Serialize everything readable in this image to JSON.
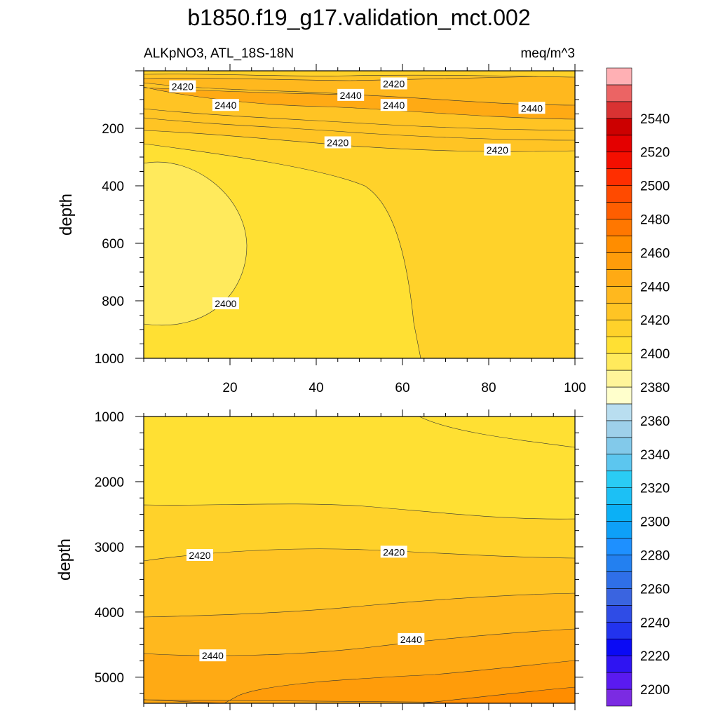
{
  "title": "b1850.f19_g17.validation_mct.002",
  "subtitle_left": "ALKpNO3, ATL_18S-18N",
  "subtitle_right": "meq/m^3",
  "colorbar": {
    "levels": [
      2190,
      2200,
      2210,
      2220,
      2230,
      2240,
      2250,
      2260,
      2270,
      2280,
      2290,
      2300,
      2310,
      2320,
      2330,
      2340,
      2350,
      2360,
      2370,
      2380,
      2390,
      2400,
      2410,
      2420,
      2430,
      2440,
      2450,
      2460,
      2470,
      2480,
      2490,
      2500,
      2510,
      2520,
      2530,
      2540,
      2550,
      2560
    ],
    "colors": [
      "#7B2BE2",
      "#5A1AF0",
      "#2F14F2",
      "#0A0AF5",
      "#2233EE",
      "#2F4CE6",
      "#3A64E0",
      "#2F6FE8",
      "#2380F0",
      "#1E90FF",
      "#0EA0F8",
      "#0BB0F6",
      "#1CC0F5",
      "#2ACCF5",
      "#5CC6EF",
      "#82C9EA",
      "#9ED0EA",
      "#B9DEF0",
      "#FFFFCC",
      "#FFF59A",
      "#FFEA5C",
      "#FFE033",
      "#FFD22A",
      "#FFC424",
      "#FFB81E",
      "#FFAA14",
      "#FF9C0A",
      "#FF8D00",
      "#FF7700",
      "#FF5E00",
      "#FF4A00",
      "#FF2E00",
      "#F40F00",
      "#E40000",
      "#CC0000",
      "#D93232",
      "#EB6464",
      "#FFB0B4"
    ],
    "tick_labels": [
      "2200",
      "2220",
      "2240",
      "2260",
      "2280",
      "2300",
      "2320",
      "2340",
      "2360",
      "2380",
      "2400",
      "2420",
      "2440",
      "2460",
      "2480",
      "2500",
      "2520",
      "2540"
    ]
  },
  "chart_data": [
    {
      "type": "contour",
      "panel": "upper",
      "xlim": [
        0,
        100
      ],
      "ylim": [
        1000,
        0
      ],
      "ylabel": "depth",
      "x_ticks": [
        "20",
        "40",
        "60",
        "80",
        "100"
      ],
      "y_ticks": [
        "200",
        "400",
        "600",
        "800",
        "1000"
      ],
      "contour_labels": [
        {
          "text": "2420",
          "x": 9,
          "y": 55
        },
        {
          "text": "2440",
          "x": 19,
          "y": 120
        },
        {
          "text": "2440",
          "x": 48,
          "y": 85
        },
        {
          "text": "2420",
          "x": 58,
          "y": 45
        },
        {
          "text": "2440",
          "x": 58,
          "y": 120
        },
        {
          "text": "2440",
          "x": 90,
          "y": 130
        },
        {
          "text": "2420",
          "x": 45,
          "y": 250
        },
        {
          "text": "2420",
          "x": 82,
          "y": 275
        },
        {
          "text": "2400",
          "x": 19,
          "y": 810
        }
      ],
      "fills": [
        {
          "level": 2420,
          "note": "upper shallow band"
        },
        {
          "level": 2440,
          "note": "subsurface maximum near 100 m"
        },
        {
          "level": 2410,
          "note": "background 200-1000 m east"
        },
        {
          "level": 2400,
          "note": "main west-central field"
        },
        {
          "level": 2390,
          "note": "western minimum 300-900 m"
        }
      ]
    },
    {
      "type": "contour",
      "panel": "lower",
      "xlim": [
        0,
        100
      ],
      "ylim": [
        5400,
        1000
      ],
      "ylabel": "depth",
      "x_ticks": [],
      "y_ticks": [
        "1000",
        "2000",
        "3000",
        "4000",
        "5000"
      ],
      "contour_labels": [
        {
          "text": "2420",
          "x": 13,
          "y": 3130
        },
        {
          "text": "2420",
          "x": 58,
          "y": 3080
        },
        {
          "text": "2440",
          "x": 62,
          "y": 4420
        },
        {
          "text": "2440",
          "x": 16,
          "y": 4670
        }
      ]
    }
  ]
}
